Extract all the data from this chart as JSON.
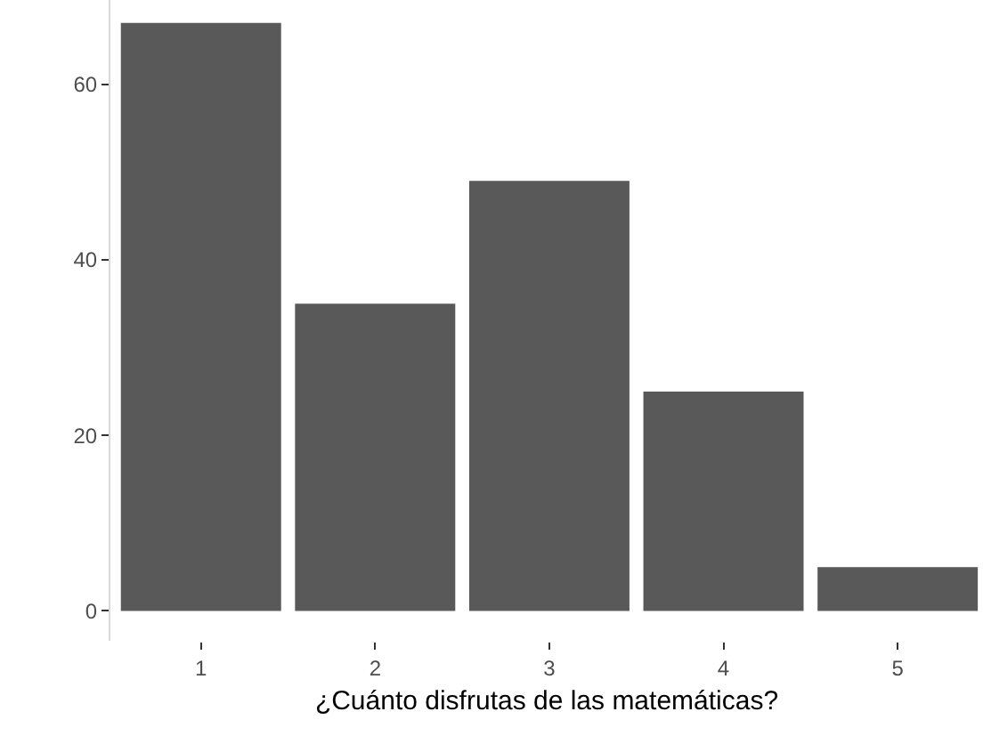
{
  "chart_data": {
    "type": "bar",
    "xlabel": "¿Cuánto disfrutas de las matemáticas?",
    "categories": [
      "1",
      "2",
      "3",
      "4",
      "5"
    ],
    "values": [
      67,
      35,
      49,
      25,
      5
    ],
    "color": "#595959",
    "ylim": [
      -3.4,
      69.6
    ],
    "yticks": [
      0,
      20,
      40,
      60
    ],
    "grid": false
  }
}
